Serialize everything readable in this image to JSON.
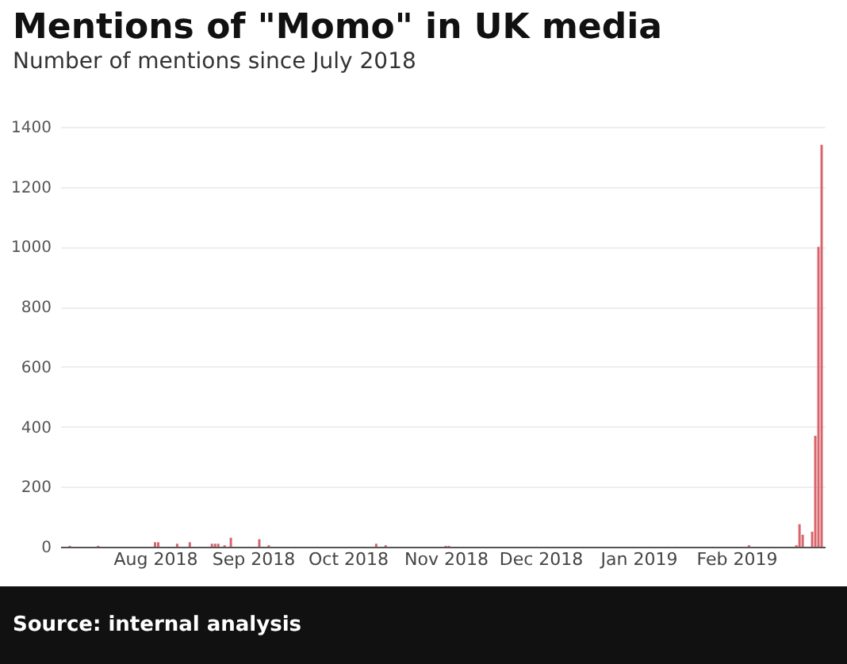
{
  "chart_data": {
    "type": "bar",
    "title": "Mentions of \"Momo\" in UK media",
    "subtitle": "Number of mentions since July 2018",
    "x": [
      "2018-07-05",
      "2018-07-14",
      "2018-07-20",
      "2018-08-01",
      "2018-08-02",
      "2018-08-08",
      "2018-08-12",
      "2018-08-19",
      "2018-08-20",
      "2018-08-21",
      "2018-08-23",
      "2018-08-25",
      "2018-09-03",
      "2018-09-06",
      "2018-09-20",
      "2018-09-26",
      "2018-10-10",
      "2018-10-13",
      "2018-11-01",
      "2018-11-02",
      "2019-02-05",
      "2019-02-20",
      "2019-02-21",
      "2019-02-22",
      "2019-02-25",
      "2019-02-26",
      "2019-02-27",
      "2019-02-28"
    ],
    "values": [
      3,
      3,
      null,
      15,
      15,
      10,
      15,
      10,
      10,
      10,
      5,
      30,
      25,
      5,
      null,
      null,
      10,
      5,
      3,
      3,
      5,
      5,
      75,
      40,
      50,
      370,
      1000,
      1340
    ],
    "color": "#d9646c",
    "xlim": [
      "2018-07-02",
      "2019-03-01"
    ],
    "xticks": [
      {
        "value": "2018-08-01",
        "label": "Aug 2018"
      },
      {
        "value": "2018-09-01",
        "label": "Sep 2018"
      },
      {
        "value": "2018-10-01",
        "label": "Oct 2018"
      },
      {
        "value": "2018-11-01",
        "label": "Nov 2018"
      },
      {
        "value": "2018-12-01",
        "label": "Dec 2018"
      },
      {
        "value": "2019-01-01",
        "label": "Jan 2019"
      },
      {
        "value": "2019-02-01",
        "label": "Feb 2019"
      }
    ],
    "ylim": [
      0,
      1400
    ],
    "yticks": [
      0,
      200,
      400,
      600,
      800,
      1000,
      1200,
      1400
    ],
    "grid": "y",
    "annotations": [
      "Source: internal analysis"
    ]
  }
}
